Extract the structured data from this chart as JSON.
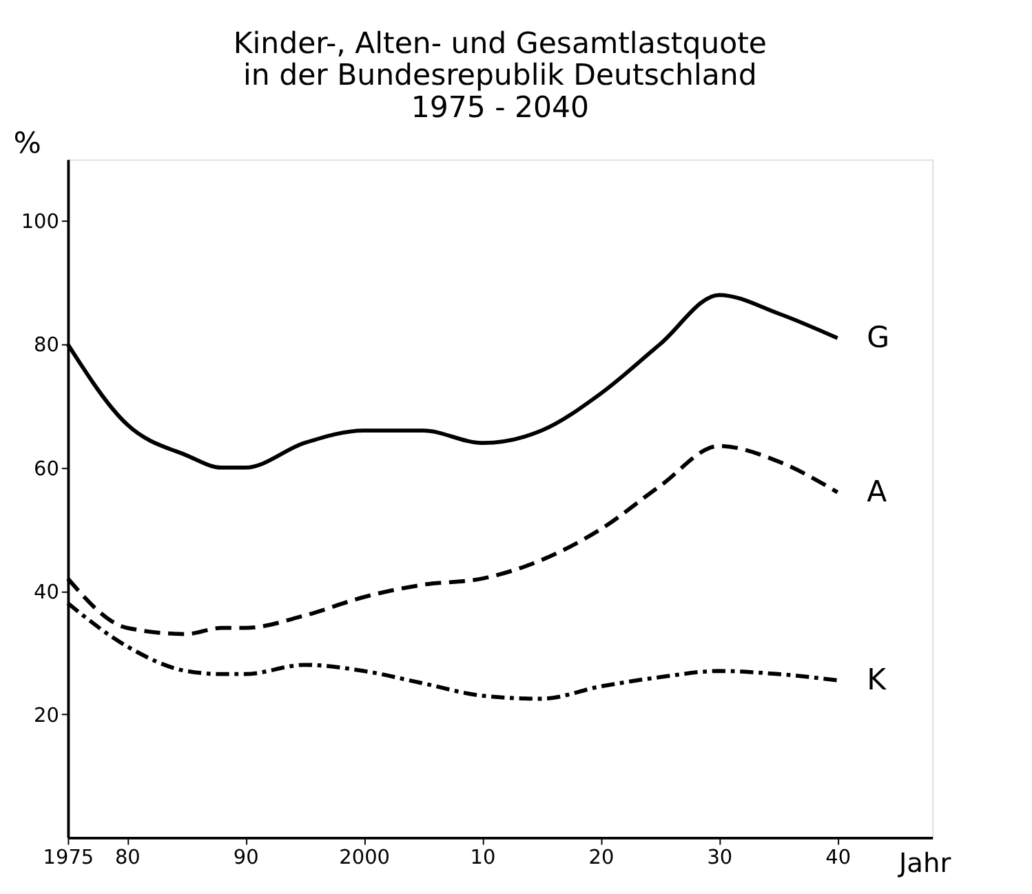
{
  "chart_data": {
    "type": "line",
    "title": "Kinder-, Alten- und Gesamtlastquote\nin der Bundesrepublik Deutschland\n1975 - 2040",
    "xlabel": "Jahr",
    "ylabel": "%",
    "x": [
      1975,
      1980,
      1985,
      1988,
      1990,
      1995,
      2000,
      2005,
      2010,
      2015,
      2020,
      2025,
      2030,
      2035,
      2040
    ],
    "series": [
      {
        "name": "G",
        "color": "#000000",
        "line_style": "solid",
        "values": [
          80,
          67,
          62,
          60,
          60,
          64,
          66,
          66,
          64,
          66,
          72,
          80,
          88,
          85,
          81
        ]
      },
      {
        "name": "A",
        "color": "#000000",
        "line_style": "dashed",
        "values": [
          42,
          34,
          33,
          34,
          34,
          36,
          39,
          41,
          42,
          45,
          50,
          57,
          63.5,
          61,
          56
        ]
      },
      {
        "name": "K",
        "color": "#000000",
        "line_style": "dashdot",
        "values": [
          38,
          31,
          27,
          26.5,
          26.5,
          28,
          27,
          25,
          23,
          22.5,
          24.5,
          26,
          27,
          26.5,
          25.5
        ]
      }
    ],
    "xlim": [
      1975,
      2048
    ],
    "ylim": [
      0,
      110
    ],
    "xticks": [
      1975,
      {
        "value": 1980,
        "label": "80"
      },
      {
        "value": 1990,
        "label": "90"
      },
      2000,
      {
        "value": 2010,
        "label": "10"
      },
      {
        "value": 2020,
        "label": "20"
      },
      {
        "value": 2030,
        "label": "30"
      },
      {
        "value": 2040,
        "label": "40"
      }
    ],
    "yticks": [
      20,
      40,
      60,
      80,
      100
    ],
    "grid": false,
    "marker": "none"
  }
}
